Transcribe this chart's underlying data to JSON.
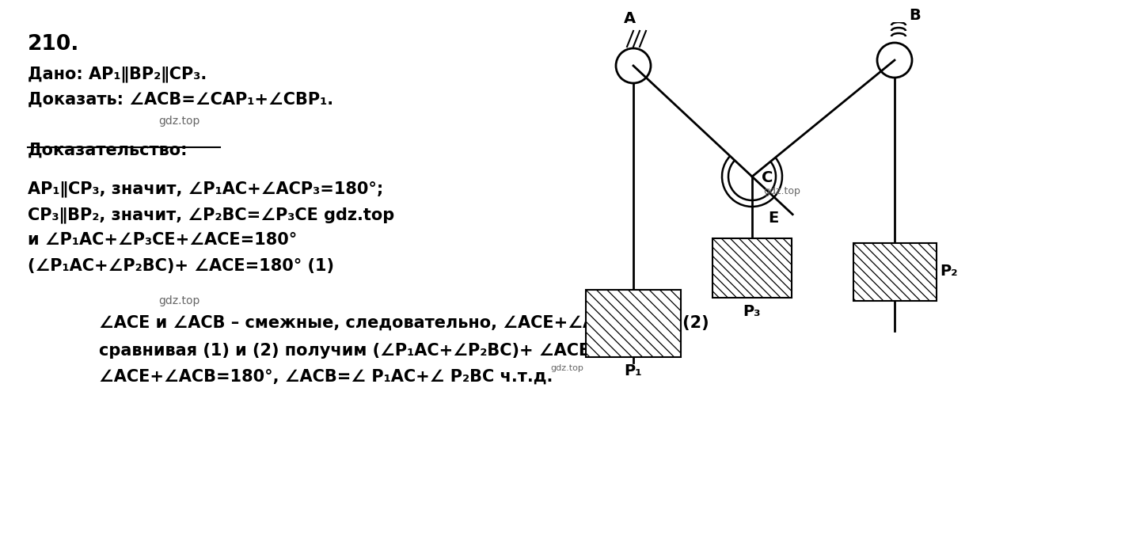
{
  "background_color": "#ffffff",
  "title_number": "210.",
  "given_line": "Дано: AP₁∥BP₂∥CP₃.",
  "prove_line": "Доказать: ∠ACB=∠CAP₁+∠CBP₁.",
  "gdz_watermark1": "gdz.top",
  "proof_header": "Доказательство:",
  "proof_lines": [
    "AP₁∥CP₃, значит, ∠P₁AC+∠ACP₃=180°;",
    "CP₃∥BP₂, значит, ∠P₂BC=∠P₃CE gdz.top",
    "и ∠P₁AC+∠P₃CE+∠ACE=180°",
    "(∠P₁AC+∠P₂BC)+ ∠ACE=180° (1)"
  ],
  "gdz_watermark2": "gdz.top",
  "bottom_line1": "∠ACE и ∠ACB – смежные, следовательно, ∠ACE+∠ACB=180° (2)",
  "bottom_line2": "сравнивая (1) и (2) получим (∠P₁AC+∠P₂BC)+ ∠ACE=180°,",
  "bottom_line3": "∠ACE+∠ACB=180°, ∠ACB=∠ P₁AC+∠ P₂BC ч.т.д.",
  "gdz_watermark3": "gdz.top",
  "label_A": "A",
  "label_B": "B",
  "label_C": "C",
  "label_E": "E",
  "label_P1": "P₁",
  "label_P2": "P₂",
  "label_P3": "P₃"
}
